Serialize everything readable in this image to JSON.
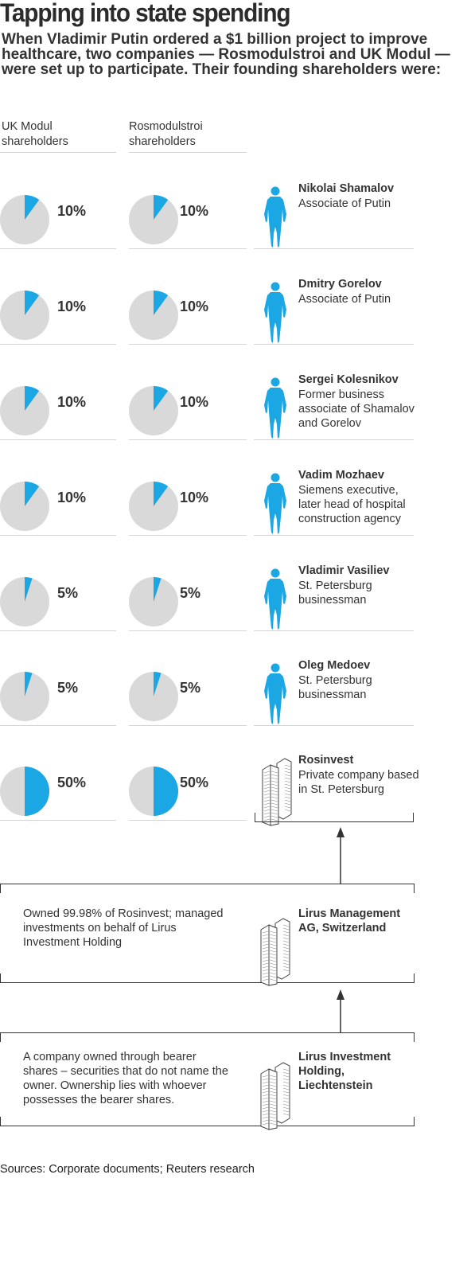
{
  "title": "Tapping into state spending",
  "subtitle": "When Vladimir Putin ordered a $1 billion project to improve healthcare, two companies — Rosmodulstroi and UK Modul — were set up to participate. Their founding shareholders were:",
  "columns": {
    "uk": [
      "UK Modul",
      "shareholders"
    ],
    "ros": [
      "Rosmodulstroi",
      "shareholders"
    ]
  },
  "colors": {
    "accent": "#1aa7e3",
    "pie_bg": "#d9d9d9",
    "text": "#333333"
  },
  "chart_data": {
    "type": "pie",
    "series": [
      {
        "name": "UK Modul shareholders",
        "values": [
          10,
          10,
          10,
          10,
          5,
          5,
          50
        ]
      },
      {
        "name": "Rosmodulstroi shareholders",
        "values": [
          10,
          10,
          10,
          10,
          5,
          5,
          50
        ]
      }
    ],
    "categories": [
      "Nikolai Shamalov",
      "Dmitry Gorelov",
      "Sergei Kolesnikov",
      "Vadim Mozhaev",
      "Vladimir Vasiliev",
      "Oleg Medoev",
      "Rosinvest"
    ]
  },
  "shareholders": [
    {
      "uk_label": "10%",
      "ros_label": "10%",
      "name": "Nikolai Shamalov",
      "desc": [
        "Associate of Putin"
      ],
      "icon": "person-icon"
    },
    {
      "uk_label": "10%",
      "ros_label": "10%",
      "name": "Dmitry Gorelov",
      "desc": [
        "Associate of Putin"
      ],
      "icon": "person-icon"
    },
    {
      "uk_label": "10%",
      "ros_label": "10%",
      "name": "Sergei Kolesnikov",
      "desc": [
        "Former business",
        "associate of Shamalov",
        "and Gorelov"
      ],
      "icon": "person-icon"
    },
    {
      "uk_label": "10%",
      "ros_label": "10%",
      "name": "Vadim Mozhaev",
      "desc": [
        "Siemens executive,",
        "later head of hospital",
        "construction agency"
      ],
      "icon": "person-icon"
    },
    {
      "uk_label": "5%",
      "ros_label": "5%",
      "name": "Vladimir Vasiliev",
      "desc": [
        "St. Petersburg",
        "businessman"
      ],
      "icon": "person-icon"
    },
    {
      "uk_label": "5%",
      "ros_label": "5%",
      "name": "Oleg Medoev",
      "desc": [
        "St. Petersburg",
        "businessman"
      ],
      "icon": "person-icon"
    },
    {
      "uk_label": "50%",
      "ros_label": "50%",
      "name": "Rosinvest",
      "desc": [
        "Private company based",
        "in St. Petersburg"
      ],
      "icon": "building-icon"
    }
  ],
  "lirus_mgmt": {
    "name": [
      "Lirus Management",
      "AG, Switzerland"
    ],
    "note": [
      "Owned 99.98% of Rosinvest; managed",
      "investments on behalf of Lirus",
      "Investment Holding"
    ]
  },
  "lirus_holding": {
    "name": [
      "Lirus Investment",
      "Holding,",
      "Liechtenstein"
    ],
    "note": [
      "A company owned through bearer",
      "shares – securities that do not name the",
      "owner. Ownership lies with whoever",
      "possesses the bearer shares."
    ]
  },
  "source": "Sources: Corporate documents; Reuters research"
}
